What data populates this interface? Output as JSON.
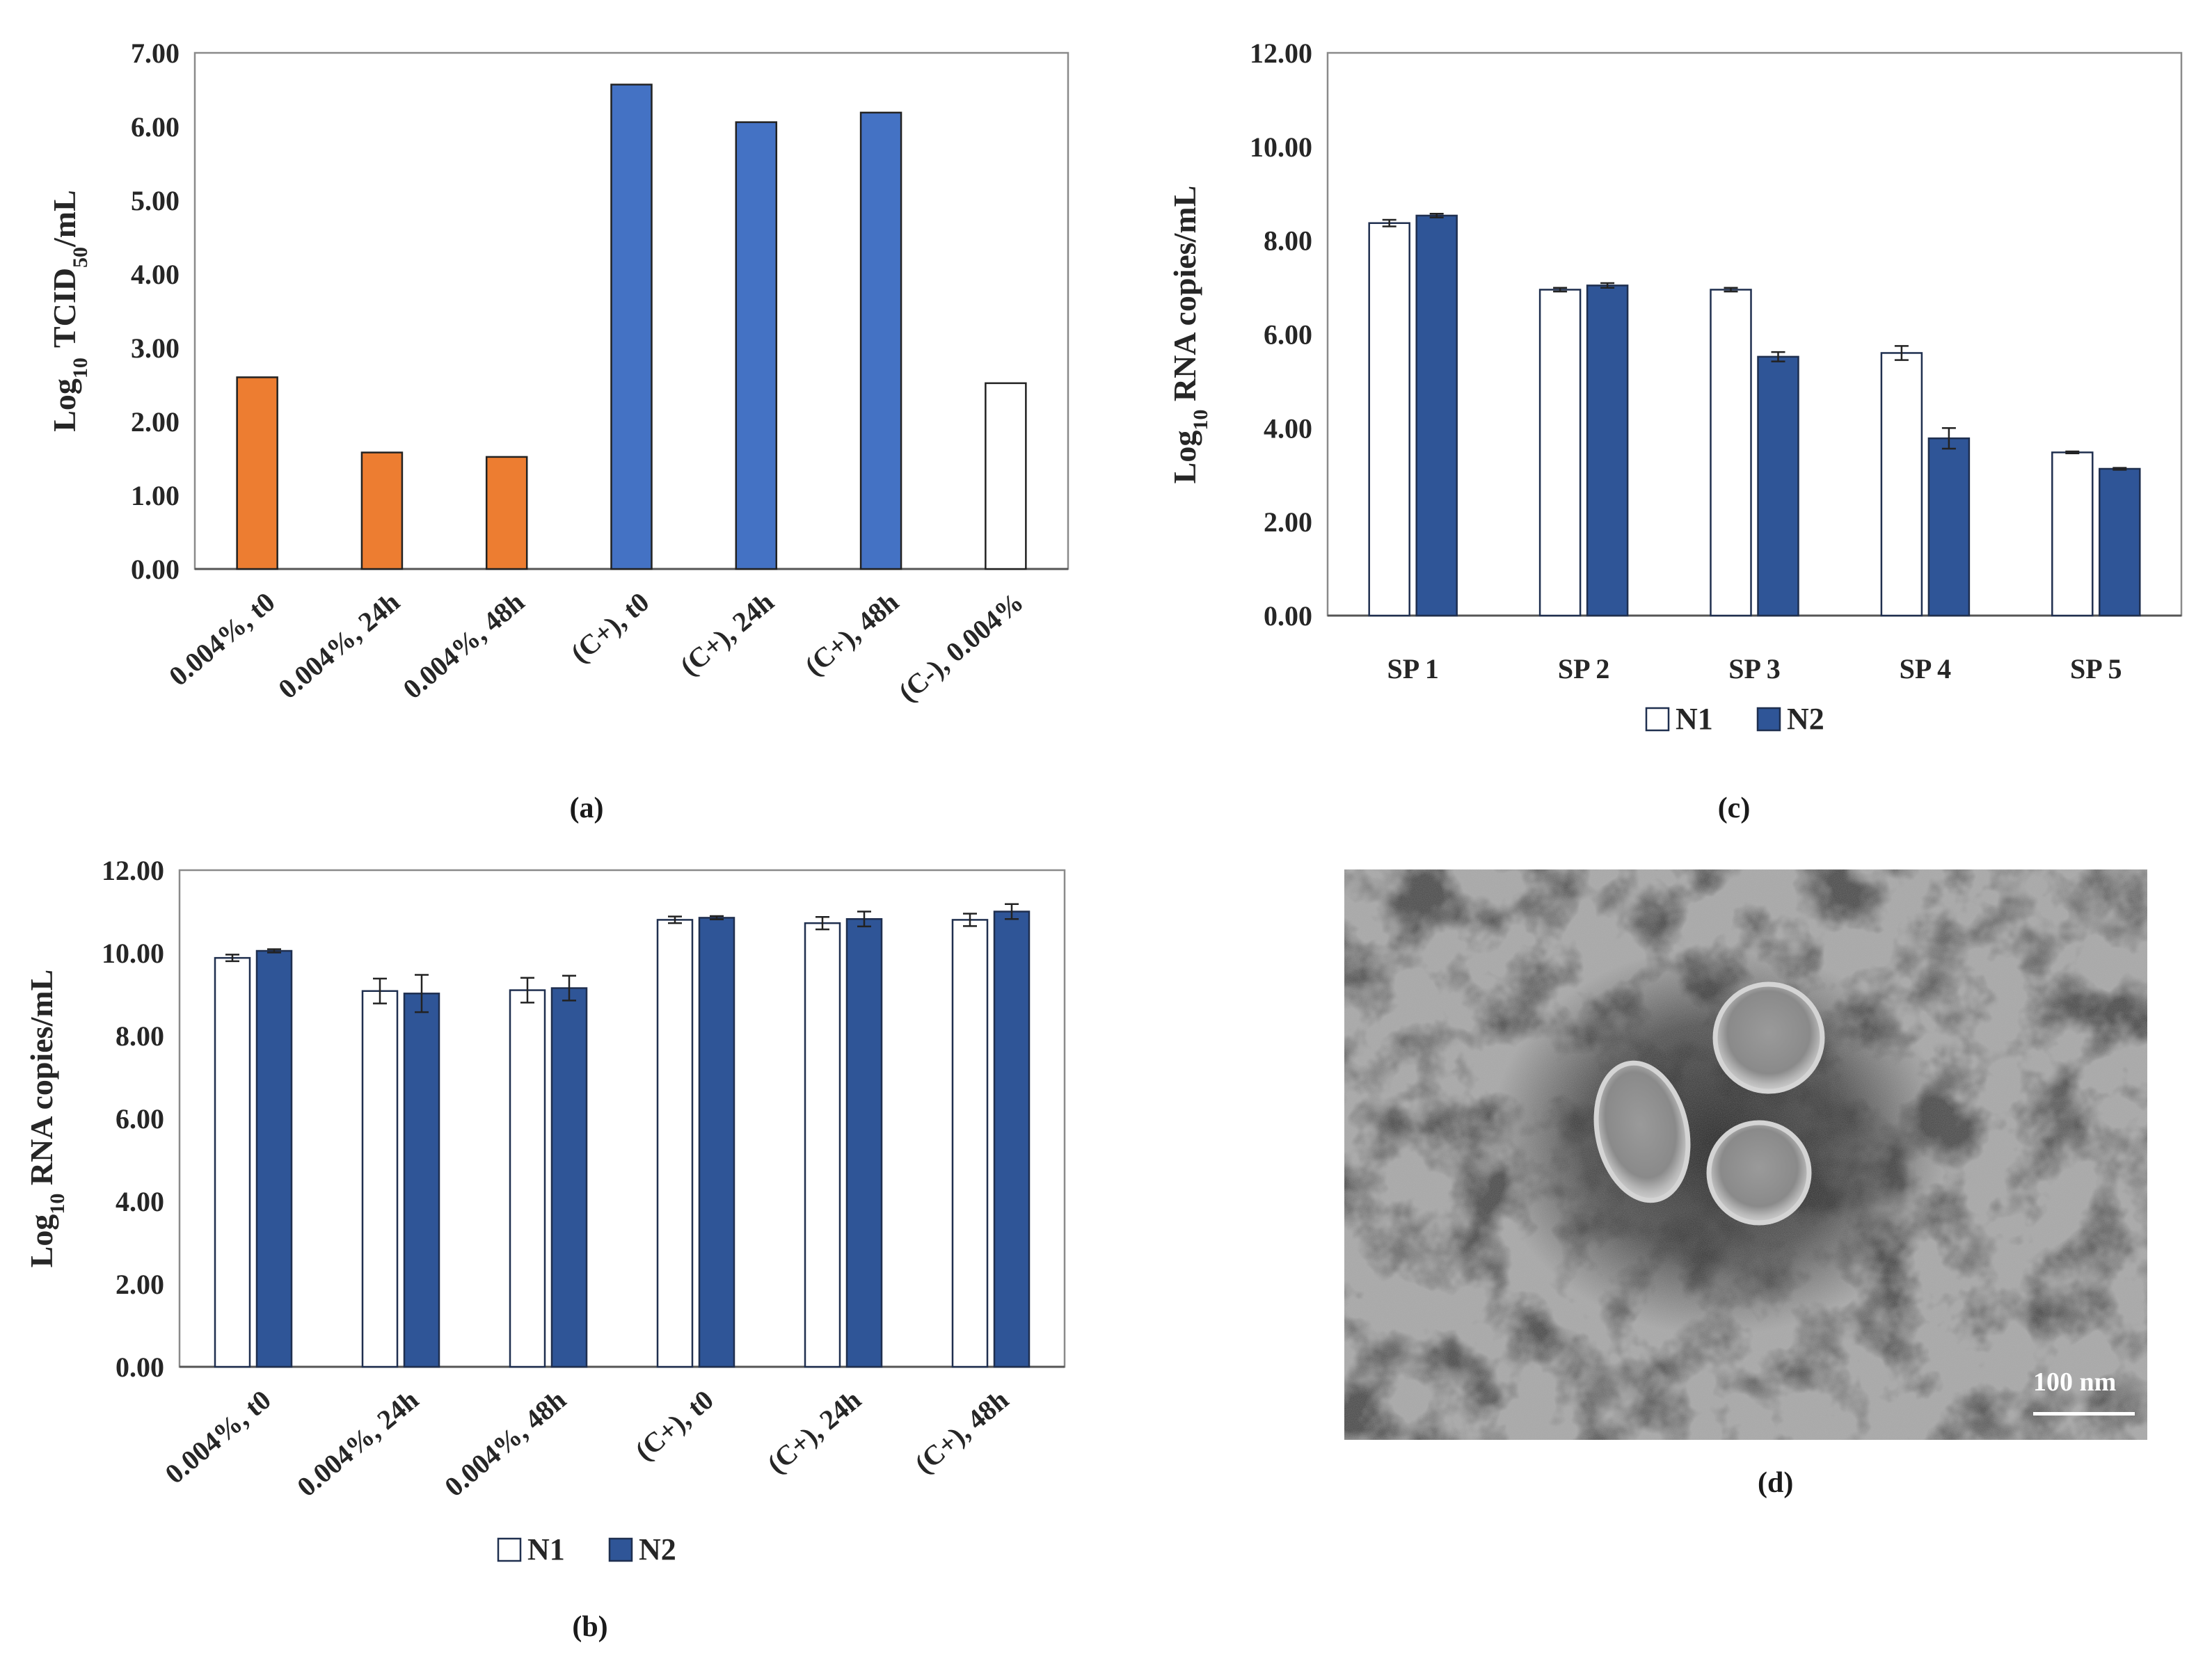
{
  "chart_data": [
    {
      "id": "a",
      "type": "bar",
      "caption": "(a)",
      "ylabel_prefix": "Log",
      "ylabel_sub": "10",
      "ylabel_main": "TCID",
      "ylabel_sub2": "50",
      "ylabel_suffix": "/mL",
      "ylim": [
        0,
        7
      ],
      "yticks": [
        "0.00",
        "1.00",
        "2.00",
        "3.00",
        "4.00",
        "5.00",
        "6.00",
        "7.00"
      ],
      "categories": [
        "0.004%, t0",
        "0.004%, 24h",
        "0.004%, 48h",
        "(C+), t0",
        "(C+), 24h",
        "(C+), 48h",
        "(C-), 0.004%"
      ],
      "values": [
        2.6,
        1.58,
        1.52,
        6.57,
        6.06,
        6.19,
        2.52
      ],
      "bar_colors": [
        "#ED7D31",
        "#ED7D31",
        "#ED7D31",
        "#4472C4",
        "#4472C4",
        "#4472C4",
        "#FFFFFF"
      ],
      "grid": false
    },
    {
      "id": "b",
      "type": "bar",
      "caption": "(b)",
      "ylabel_prefix": "Log",
      "ylabel_sub": "10",
      "ylabel_main": " RNA copies/mL",
      "ylim": [
        0,
        12
      ],
      "yticks": [
        "0.00",
        "2.00",
        "4.00",
        "6.00",
        "8.00",
        "10.00",
        "12.00"
      ],
      "categories": [
        "0.004%, t0",
        "0.004%, 24h",
        "0.004%, 48h",
        "(C+), t0",
        "(C+), 24h",
        "(C+), 48h"
      ],
      "series": [
        {
          "name": "N1",
          "color": "#FFFFFF",
          "values": [
            9.88,
            9.08,
            9.1,
            10.8,
            10.72,
            10.8
          ],
          "errors": [
            0.08,
            0.3,
            0.3,
            0.08,
            0.15,
            0.15
          ]
        },
        {
          "name": "N2",
          "color": "#2F5597",
          "values": [
            10.05,
            9.02,
            9.15,
            10.85,
            10.82,
            11.0
          ],
          "errors": [
            0.04,
            0.45,
            0.3,
            0.04,
            0.18,
            0.18
          ]
        }
      ],
      "legend_position": "bottom",
      "grid": false
    },
    {
      "id": "c",
      "type": "bar",
      "caption": "(c)",
      "ylabel_prefix": "Log",
      "ylabel_sub": "10",
      "ylabel_main": " RNA copies/mL",
      "ylim": [
        0,
        12
      ],
      "yticks": [
        "0.00",
        "2.00",
        "4.00",
        "6.00",
        "8.00",
        "10.00",
        "12.00"
      ],
      "categories": [
        "SP 1",
        "SP 2",
        "SP 3",
        "SP 4",
        "SP 5"
      ],
      "series": [
        {
          "name": "N1",
          "color": "#FFFFFF",
          "values": [
            8.37,
            6.95,
            6.95,
            5.6,
            3.48
          ],
          "errors": [
            0.07,
            0.04,
            0.04,
            0.15,
            0.02
          ]
        },
        {
          "name": "N2",
          "color": "#2F5597",
          "values": [
            8.53,
            7.04,
            5.52,
            3.78,
            3.13
          ],
          "errors": [
            0.04,
            0.05,
            0.1,
            0.22,
            0.02
          ]
        }
      ],
      "legend_position": "bottom",
      "grid": false
    }
  ],
  "panel_d": {
    "caption": "(d)",
    "scale_label": "100 nm"
  }
}
